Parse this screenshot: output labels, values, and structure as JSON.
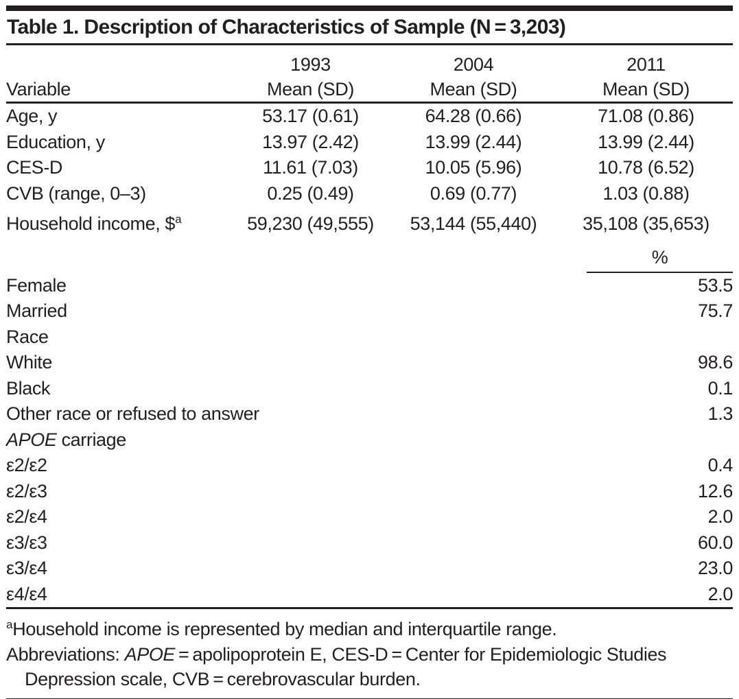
{
  "table": {
    "title": "Table 1. Description of Characteristics of Sample (N = 3,203)",
    "variable_header": "Variable",
    "columns": [
      {
        "year": "1993",
        "sub": "Mean (SD)"
      },
      {
        "year": "2004",
        "sub": "Mean (SD)"
      },
      {
        "year": "2011",
        "sub": "Mean (SD)"
      }
    ],
    "mean_rows": [
      {
        "label": "Age, y",
        "values": [
          "53.17 (0.61)",
          "64.28 (0.66)",
          "71.08 (0.86)"
        ]
      },
      {
        "label": "Education, y",
        "values": [
          "13.97 (2.42)",
          "13.99 (2.44)",
          "13.99 (2.44)"
        ]
      },
      {
        "label": "CES-D",
        "values": [
          "11.61 (7.03)",
          "10.05 (5.96)",
          "10.78 (6.52)"
        ]
      },
      {
        "label": "CVB (range, 0–3)",
        "values": [
          "0.25 (0.49)",
          "0.69 (0.77)",
          "1.03 (0.88)"
        ]
      },
      {
        "label": "Household income, $",
        "label_sup": "a",
        "values": [
          "59,230 (49,555)",
          "53,144 (55,440)",
          "35,108 (35,653)"
        ]
      }
    ],
    "percent_header": "%",
    "percent_rows": [
      {
        "label": "Female",
        "value": "53.5",
        "indent": false
      },
      {
        "label": "Married",
        "value": "75.7",
        "indent": false
      },
      {
        "label": "Race",
        "value": "",
        "indent": false
      },
      {
        "label": "White",
        "value": "98.6",
        "indent": true
      },
      {
        "label": "Black",
        "value": "0.1",
        "indent": true
      },
      {
        "label": "Other race or refused to answer",
        "value": "1.3",
        "indent": true
      },
      {
        "label_italic": "APOE",
        "label": " carriage",
        "value": "",
        "indent": false
      },
      {
        "label": "ε2/ε2",
        "value": "0.4",
        "indent": true
      },
      {
        "label": "ε2/ε3",
        "value": "12.6",
        "indent": true
      },
      {
        "label": "ε2/ε4",
        "value": "2.0",
        "indent": true
      },
      {
        "label": "ε3/ε3",
        "value": "60.0",
        "indent": true
      },
      {
        "label": "ε3/ε4",
        "value": "23.0",
        "indent": true
      },
      {
        "label": "ε4/ε4",
        "value": "2.0",
        "indent": true
      }
    ],
    "footnotes": {
      "note_a_sup": "a",
      "note_a_text": "Household income is represented by median and interquartile range.",
      "abbrev_prefix": "Abbreviations: ",
      "abbrev_italic": "APOE",
      "abbrev_rest": " = apolipoprotein E, CES-D = Center for Epidemiologic Studies",
      "abbrev_line2": "Depression scale, CVB = cerebrovascular burden."
    }
  }
}
